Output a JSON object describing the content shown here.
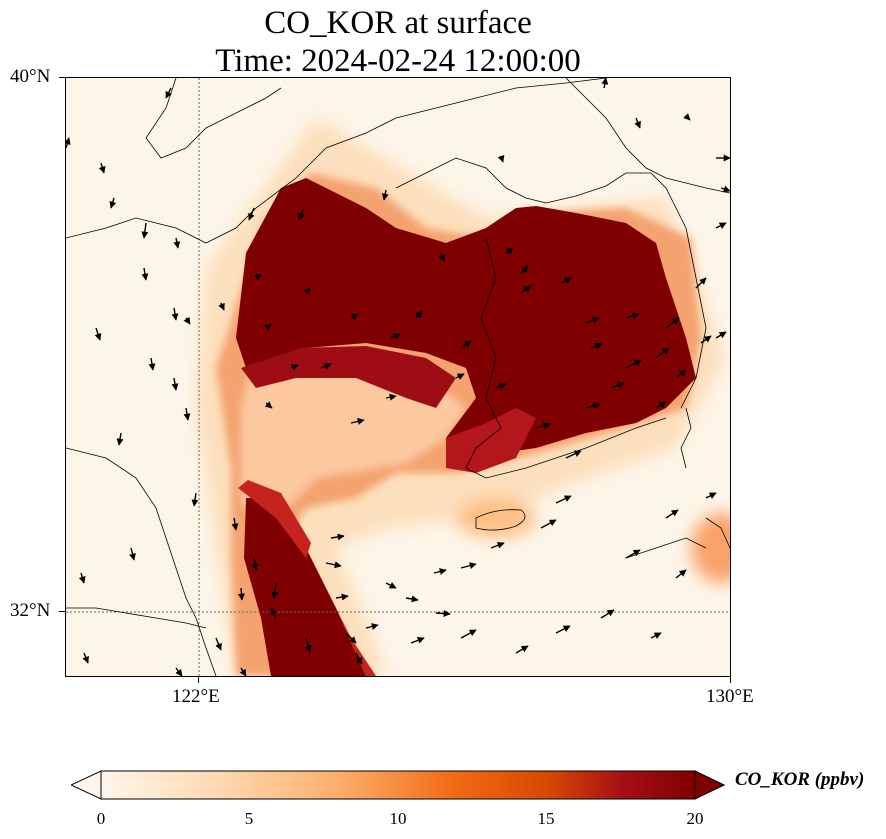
{
  "title": {
    "line1": "CO_KOR at surface",
    "line2": "Time: 2024-02-24 12:00:00"
  },
  "map": {
    "lat_range": [
      31.0,
      40.0
    ],
    "lon_range": [
      120.0,
      130.0
    ],
    "lat_ticks": [
      {
        "value": 40,
        "label": "40°N"
      },
      {
        "value": 32,
        "label": "32°N"
      }
    ],
    "lon_ticks": [
      {
        "value": 122,
        "label": "122°E"
      },
      {
        "value": 130,
        "label": "130°E"
      }
    ],
    "gridlines": "dotted at 32°N and 122°E",
    "field": "CO_KOR concentration at surface with wind vectors",
    "coastlines": true,
    "wind_arrows": true
  },
  "colorbar": {
    "label": "CO_KOR (ppbv)",
    "min": 0,
    "max": 20,
    "ticks": [
      {
        "value": 0,
        "label": "0"
      },
      {
        "value": 5,
        "label": "5"
      },
      {
        "value": 10,
        "label": "10"
      },
      {
        "value": 15,
        "label": "15"
      },
      {
        "value": 20,
        "label": "20"
      }
    ],
    "colormap": [
      "#fff5eb",
      "#fdd9b0",
      "#fdae6b",
      "#f16913",
      "#d94801",
      "#a50f15",
      "#7f0000"
    ],
    "extend": "both"
  }
}
